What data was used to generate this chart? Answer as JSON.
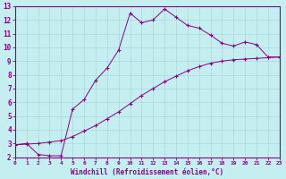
{
  "title": "",
  "xlabel": "Windchill (Refroidissement éolien,°C)",
  "ylabel": "",
  "bg_color": "#c5eef0",
  "line_color": "#880088",
  "grid_color": "#a8d8dc",
  "curve1_x": [
    0,
    1,
    2,
    3,
    4,
    5,
    6,
    7,
    8,
    9,
    10,
    11,
    12,
    13,
    14,
    15,
    16,
    17,
    18,
    19,
    20,
    21,
    22,
    23
  ],
  "curve1_y": [
    2.9,
    3.0,
    2.2,
    2.1,
    2.1,
    5.5,
    6.2,
    7.6,
    8.5,
    9.8,
    12.5,
    11.8,
    12.0,
    12.8,
    12.2,
    11.6,
    11.4,
    10.9,
    10.3,
    10.1,
    10.4,
    10.2,
    9.3,
    9.3
  ],
  "curve2_x": [
    0,
    1,
    2,
    3,
    4,
    5,
    6,
    7,
    8,
    9,
    10,
    11,
    12,
    13,
    14,
    15,
    16,
    17,
    18,
    19,
    20,
    21,
    22,
    23
  ],
  "curve2_y": [
    2.9,
    2.95,
    3.0,
    3.1,
    3.2,
    3.5,
    3.9,
    4.3,
    4.8,
    5.3,
    5.9,
    6.5,
    7.0,
    7.5,
    7.9,
    8.3,
    8.6,
    8.85,
    9.0,
    9.1,
    9.15,
    9.2,
    9.25,
    9.3
  ],
  "xlim": [
    0,
    23
  ],
  "ylim": [
    2,
    13
  ],
  "xticks": [
    0,
    1,
    2,
    3,
    4,
    5,
    6,
    7,
    8,
    9,
    10,
    11,
    12,
    13,
    14,
    15,
    16,
    17,
    18,
    19,
    20,
    21,
    22,
    23
  ],
  "yticks": [
    2,
    3,
    4,
    5,
    6,
    7,
    8,
    9,
    10,
    11,
    12,
    13
  ]
}
